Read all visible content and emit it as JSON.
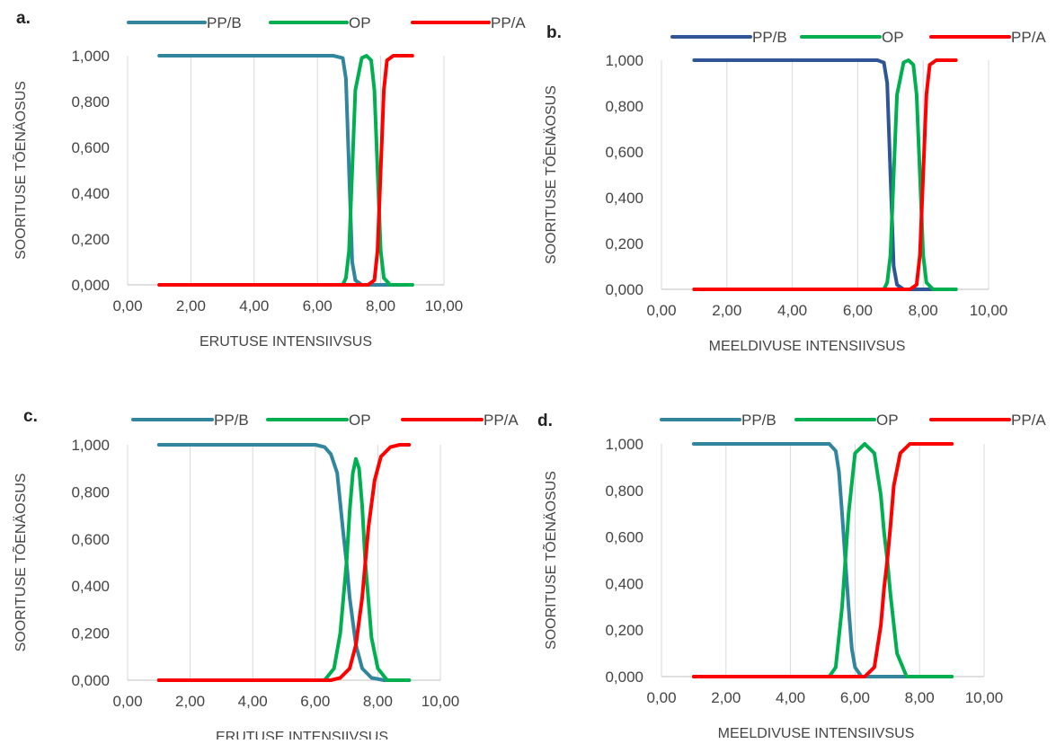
{
  "chart_data": [
    {
      "type": "line",
      "panel_label": "a.",
      "xlabel": "ERUTUSE INTENSIIVSUS",
      "ylabel": "SOORITUSE TÕENÄOSUS",
      "xlim": [
        0,
        10
      ],
      "ylim": [
        0,
        1
      ],
      "x_ticks": [
        "0,00",
        "2,00",
        "4,00",
        "6,00",
        "8,00",
        "10,00"
      ],
      "y_ticks": [
        "0,000",
        "0,200",
        "0,400",
        "0,600",
        "0,800",
        "1,000"
      ],
      "grid": "vertical",
      "legend_position": "top",
      "series": [
        {
          "name": "PP/B",
          "color": "#31859c",
          "x": [
            1.0,
            6.5,
            6.8,
            6.9,
            7.0,
            7.1,
            7.2,
            7.4,
            9.0
          ],
          "y": [
            1.0,
            1.0,
            0.99,
            0.9,
            0.5,
            0.1,
            0.02,
            0.0,
            0.0
          ]
        },
        {
          "name": "OP",
          "color": "#00b050",
          "x": [
            1.0,
            6.8,
            6.9,
            7.0,
            7.1,
            7.2,
            7.4,
            7.55,
            7.7,
            7.8,
            7.9,
            8.0,
            8.1,
            8.3,
            9.0
          ],
          "y": [
            0.0,
            0.0,
            0.03,
            0.15,
            0.5,
            0.85,
            0.99,
            1.0,
            0.98,
            0.85,
            0.5,
            0.15,
            0.03,
            0.0,
            0.0
          ]
        },
        {
          "name": "PP/A",
          "color": "#ff0000",
          "x": [
            1.0,
            7.6,
            7.8,
            7.9,
            8.0,
            8.1,
            8.2,
            8.4,
            9.0
          ],
          "y": [
            0.0,
            0.0,
            0.02,
            0.15,
            0.5,
            0.85,
            0.98,
            1.0,
            1.0
          ]
        }
      ]
    },
    {
      "type": "line",
      "panel_label": "b.",
      "xlabel": "MEELDIVUSE INTENSIIVSUS",
      "ylabel": "SOORITUSE TÕENÄOSUS",
      "xlim": [
        0,
        10
      ],
      "ylim": [
        0,
        1
      ],
      "x_ticks": [
        "0,00",
        "2,00",
        "4,00",
        "6,00",
        "8,00",
        "10,00"
      ],
      "y_ticks": [
        "0,000",
        "0,200",
        "0,400",
        "0,600",
        "0,800",
        "1,000"
      ],
      "grid": "vertical",
      "legend_position": "top",
      "series": [
        {
          "name": "PP/B",
          "color": "#2f5597",
          "x": [
            1.0,
            6.6,
            6.8,
            6.9,
            7.0,
            7.1,
            7.2,
            7.4,
            9.0
          ],
          "y": [
            1.0,
            1.0,
            0.99,
            0.9,
            0.5,
            0.1,
            0.02,
            0.0,
            0.0
          ]
        },
        {
          "name": "OP",
          "color": "#00b050",
          "x": [
            1.0,
            6.8,
            6.9,
            7.0,
            7.1,
            7.2,
            7.4,
            7.55,
            7.7,
            7.8,
            7.9,
            8.0,
            8.1,
            8.3,
            9.0
          ],
          "y": [
            0.0,
            0.0,
            0.03,
            0.15,
            0.5,
            0.85,
            0.99,
            1.0,
            0.98,
            0.85,
            0.5,
            0.15,
            0.03,
            0.0,
            0.0
          ]
        },
        {
          "name": "PP/A",
          "color": "#ff0000",
          "x": [
            1.0,
            7.6,
            7.8,
            7.9,
            8.0,
            8.1,
            8.2,
            8.4,
            9.0
          ],
          "y": [
            0.0,
            0.0,
            0.02,
            0.15,
            0.5,
            0.85,
            0.98,
            1.0,
            1.0
          ]
        }
      ]
    },
    {
      "type": "line",
      "panel_label": "c.",
      "xlabel": "ERUTUSE INTENSIIVSUS",
      "ylabel": "SOORITUSE TÕENÄOSUS",
      "xlim": [
        0,
        10
      ],
      "ylim": [
        0,
        1
      ],
      "x_ticks": [
        "0,00",
        "2,00",
        "4,00",
        "6,00",
        "8,00",
        "10,00"
      ],
      "y_ticks": [
        "0,000",
        "0,200",
        "0,400",
        "0,600",
        "0,800",
        "1,000"
      ],
      "grid": "vertical",
      "legend_position": "top",
      "series": [
        {
          "name": "PP/B",
          "color": "#31859c",
          "x": [
            1.0,
            6.0,
            6.3,
            6.5,
            6.7,
            6.9,
            7.0,
            7.1,
            7.3,
            7.5,
            7.8,
            8.2,
            9.0
          ],
          "y": [
            1.0,
            1.0,
            0.99,
            0.96,
            0.88,
            0.62,
            0.5,
            0.35,
            0.15,
            0.05,
            0.01,
            0.0,
            0.0
          ]
        },
        {
          "name": "OP",
          "color": "#00b050",
          "x": [
            1.0,
            6.3,
            6.6,
            6.8,
            7.0,
            7.1,
            7.2,
            7.3,
            7.4,
            7.5,
            7.6,
            7.8,
            8.0,
            8.3,
            9.0
          ],
          "y": [
            0.0,
            0.0,
            0.05,
            0.2,
            0.5,
            0.72,
            0.88,
            0.94,
            0.9,
            0.74,
            0.5,
            0.18,
            0.05,
            0.0,
            0.0
          ]
        },
        {
          "name": "PP/A",
          "color": "#ff0000",
          "x": [
            1.0,
            6.5,
            6.8,
            7.1,
            7.3,
            7.5,
            7.6,
            7.7,
            7.9,
            8.1,
            8.4,
            8.7,
            9.0
          ],
          "y": [
            0.0,
            0.0,
            0.01,
            0.05,
            0.15,
            0.35,
            0.5,
            0.65,
            0.85,
            0.95,
            0.99,
            1.0,
            1.0
          ]
        }
      ]
    },
    {
      "type": "line",
      "panel_label": "d.",
      "xlabel": "MEELDIVUSE INTENSIIVSUS",
      "ylabel": "SOORITUSE TÕENÄOSUS",
      "xlim": [
        0,
        10
      ],
      "ylim": [
        0,
        1
      ],
      "x_ticks": [
        "0,00",
        "2,00",
        "4,00",
        "6,00",
        "8,00",
        "10,00"
      ],
      "y_ticks": [
        "0,000",
        "0,200",
        "0,400",
        "0,600",
        "0,800",
        "1,000"
      ],
      "grid": "vertical",
      "legend_position": "top",
      "series": [
        {
          "name": "PP/B",
          "color": "#31859c",
          "x": [
            1.0,
            5.2,
            5.4,
            5.5,
            5.6,
            5.7,
            5.8,
            5.9,
            6.0,
            6.2,
            9.0
          ],
          "y": [
            1.0,
            1.0,
            0.97,
            0.88,
            0.7,
            0.5,
            0.3,
            0.12,
            0.04,
            0.0,
            0.0
          ]
        },
        {
          "name": "OP",
          "color": "#00b050",
          "x": [
            1.0,
            5.2,
            5.4,
            5.6,
            5.7,
            5.8,
            6.0,
            6.3,
            6.6,
            6.8,
            6.9,
            7.0,
            7.1,
            7.3,
            7.6,
            9.0
          ],
          "y": [
            0.0,
            0.0,
            0.04,
            0.3,
            0.5,
            0.7,
            0.96,
            1.0,
            0.96,
            0.78,
            0.62,
            0.5,
            0.35,
            0.1,
            0.0,
            0.0
          ]
        },
        {
          "name": "PP/A",
          "color": "#ff0000",
          "x": [
            1.0,
            6.3,
            6.6,
            6.8,
            6.9,
            7.0,
            7.1,
            7.2,
            7.4,
            7.7,
            9.0
          ],
          "y": [
            0.0,
            0.0,
            0.04,
            0.22,
            0.38,
            0.5,
            0.65,
            0.82,
            0.96,
            1.0,
            1.0
          ]
        }
      ]
    }
  ]
}
